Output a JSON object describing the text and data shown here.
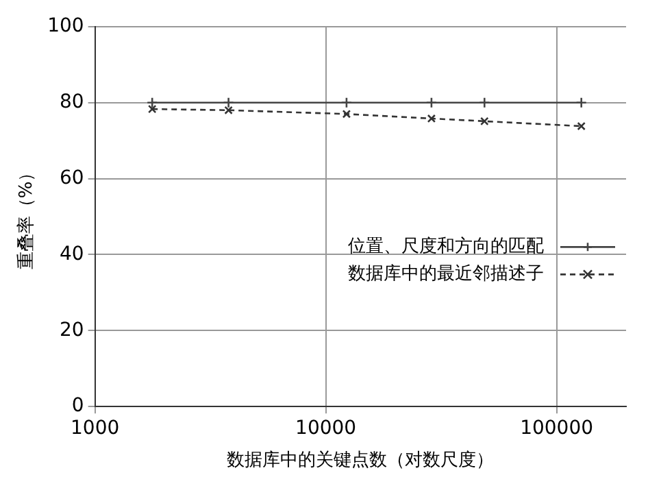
{
  "chart_data": {
    "type": "line",
    "xlabel": "数据库中的关键点数（对数尺度）",
    "ylabel": "重叠率（%）",
    "log": "x",
    "xlim": [
      1000,
      200000
    ],
    "xticks": [
      1000,
      10000,
      100000
    ],
    "ylim": [
      0,
      100
    ],
    "yticks": [
      0,
      20,
      40,
      60,
      80,
      100
    ],
    "grid": true,
    "legend": "right",
    "series": [
      {
        "name": "位置、尺度和方向的匹配",
        "color": "#444444",
        "line_style": "solid",
        "marker": "cross",
        "x": [
          1770,
          3790,
          12300,
          28700,
          48700,
          128000
        ],
        "values": [
          80,
          80,
          80,
          80,
          80,
          80
        ]
      },
      {
        "name": "数据库中的最近邻描述子",
        "color": "#333333",
        "line_style": "dashed",
        "marker": "x",
        "x": [
          1770,
          3790,
          12300,
          28700,
          48700,
          128000
        ],
        "values": [
          78.3,
          78,
          77,
          75.8,
          75.1,
          73.8
        ]
      }
    ]
  }
}
